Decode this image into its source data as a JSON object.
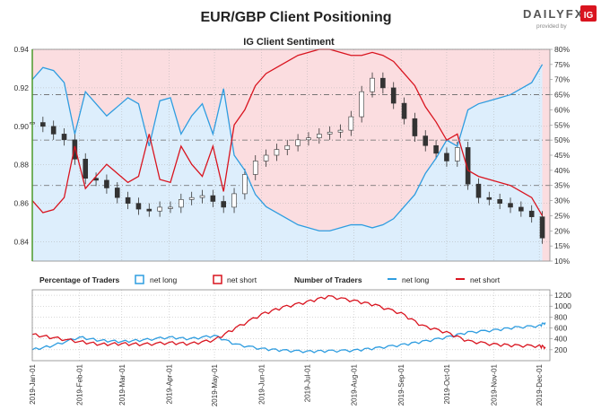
{
  "header": {
    "title": "EUR/GBP Client Positioning",
    "brand": "DAILYFX",
    "brand_tag": "provided by",
    "brand_mark": "IG"
  },
  "colors": {
    "net_long": "#2f9de0",
    "net_short": "#d9141f",
    "long_fill": "#ddeefc",
    "short_fill": "#fbdde0",
    "candle": "#333333",
    "grid": "#b0b0b0",
    "brand_red": "#d9141f"
  },
  "chart_data": [
    {
      "type": "line",
      "title": "IG Client Sentiment",
      "x": [
        "2019-01-01",
        "2019-02-01",
        "2019-03-01",
        "2019-04-01",
        "2019-05-01",
        "2019-06-01",
        "2019-07-01",
        "2019-08-01",
        "2019-09-01",
        "2019-10-01",
        "2019-11-01",
        "2019-12-01"
      ],
      "xtick_labels": [
        "2019-Jan-01",
        "2019-Feb-01",
        "2019-Mar-01",
        "2019-Apr-01",
        "2019-May-01",
        "2019-Jun-01",
        "2019-Jul-01",
        "2019-Aug-01",
        "2019-Sep-01",
        "2019-Oct-01",
        "2019-Nov-01",
        "2019-Dec-01"
      ],
      "ylim_price": [
        0.83,
        0.94
      ],
      "yticks_price": [
        "0.84",
        "0.86",
        "0.88",
        "0.90",
        "0.92",
        "0.94"
      ],
      "ylim_pct": [
        10,
        80
      ],
      "yticks_pct": [
        "10%",
        "15%",
        "20%",
        "25%",
        "30%",
        "35%",
        "40%",
        "45%",
        "50%",
        "55%",
        "60%",
        "65%",
        "70%",
        "75%",
        "80%"
      ],
      "reference_lines_pct": [
        35,
        50,
        65
      ],
      "price": {
        "x": [
          "2019-01-01",
          "2019-01-08",
          "2019-01-15",
          "2019-01-22",
          "2019-01-29",
          "2019-02-05",
          "2019-02-12",
          "2019-02-19",
          "2019-02-26",
          "2019-03-05",
          "2019-03-12",
          "2019-03-19",
          "2019-03-26",
          "2019-04-02",
          "2019-04-09",
          "2019-04-16",
          "2019-04-23",
          "2019-04-30",
          "2019-05-07",
          "2019-05-14",
          "2019-05-21",
          "2019-05-28",
          "2019-06-04",
          "2019-06-11",
          "2019-06-18",
          "2019-06-25",
          "2019-07-02",
          "2019-07-09",
          "2019-07-16",
          "2019-07-23",
          "2019-07-30",
          "2019-08-06",
          "2019-08-13",
          "2019-08-20",
          "2019-08-27",
          "2019-09-03",
          "2019-09-10",
          "2019-09-17",
          "2019-09-24",
          "2019-10-01",
          "2019-10-08",
          "2019-10-15",
          "2019-10-22",
          "2019-10-29",
          "2019-11-05",
          "2019-11-12",
          "2019-11-19",
          "2019-11-26",
          "2019-12-03"
        ],
        "y": [
          0.902,
          0.9,
          0.896,
          0.893,
          0.883,
          0.873,
          0.872,
          0.868,
          0.863,
          0.86,
          0.857,
          0.856,
          0.858,
          0.858,
          0.862,
          0.863,
          0.864,
          0.861,
          0.858,
          0.865,
          0.875,
          0.882,
          0.885,
          0.888,
          0.89,
          0.893,
          0.894,
          0.896,
          0.897,
          0.898,
          0.905,
          0.918,
          0.925,
          0.92,
          0.912,
          0.904,
          0.895,
          0.89,
          0.886,
          0.882,
          0.889,
          0.87,
          0.863,
          0.862,
          0.86,
          0.858,
          0.856,
          0.853,
          0.842
        ]
      },
      "series": [
        {
          "name": "net long",
          "x": [
            "2019-01-01",
            "2019-01-08",
            "2019-01-15",
            "2019-01-22",
            "2019-01-29",
            "2019-02-05",
            "2019-02-12",
            "2019-02-19",
            "2019-02-26",
            "2019-03-05",
            "2019-03-12",
            "2019-03-19",
            "2019-03-26",
            "2019-04-02",
            "2019-04-09",
            "2019-04-16",
            "2019-04-23",
            "2019-04-30",
            "2019-05-07",
            "2019-05-14",
            "2019-05-21",
            "2019-05-28",
            "2019-06-04",
            "2019-06-11",
            "2019-06-18",
            "2019-06-25",
            "2019-07-02",
            "2019-07-09",
            "2019-07-16",
            "2019-07-23",
            "2019-07-30",
            "2019-08-06",
            "2019-08-13",
            "2019-08-20",
            "2019-08-27",
            "2019-09-03",
            "2019-09-10",
            "2019-09-17",
            "2019-09-24",
            "2019-10-01",
            "2019-10-08",
            "2019-10-15",
            "2019-10-22",
            "2019-10-29",
            "2019-11-05",
            "2019-11-12",
            "2019-11-19",
            "2019-11-26",
            "2019-12-03"
          ],
          "values": [
            70,
            74,
            73,
            69,
            52,
            66,
            62,
            58,
            61,
            64,
            62,
            48,
            63,
            64,
            52,
            58,
            62,
            52,
            67,
            45,
            40,
            32,
            28,
            26,
            24,
            22,
            21,
            20,
            20,
            21,
            22,
            22,
            21,
            22,
            24,
            28,
            32,
            39,
            44,
            50,
            48,
            60,
            62,
            63,
            64,
            65,
            67,
            69,
            75
          ]
        },
        {
          "name": "net short",
          "x": [
            "2019-01-01",
            "2019-01-08",
            "2019-01-15",
            "2019-01-22",
            "2019-01-29",
            "2019-02-05",
            "2019-02-12",
            "2019-02-19",
            "2019-02-26",
            "2019-03-05",
            "2019-03-12",
            "2019-03-19",
            "2019-03-26",
            "2019-04-02",
            "2019-04-09",
            "2019-04-16",
            "2019-04-23",
            "2019-04-30",
            "2019-05-07",
            "2019-05-14",
            "2019-05-21",
            "2019-05-28",
            "2019-06-04",
            "2019-06-11",
            "2019-06-18",
            "2019-06-25",
            "2019-07-02",
            "2019-07-09",
            "2019-07-16",
            "2019-07-23",
            "2019-07-30",
            "2019-08-06",
            "2019-08-13",
            "2019-08-20",
            "2019-08-27",
            "2019-09-03",
            "2019-09-10",
            "2019-09-17",
            "2019-09-24",
            "2019-10-01",
            "2019-10-08",
            "2019-10-15",
            "2019-10-22",
            "2019-10-29",
            "2019-11-05",
            "2019-11-12",
            "2019-11-19",
            "2019-11-26",
            "2019-12-03"
          ],
          "values": [
            30,
            26,
            27,
            31,
            48,
            34,
            38,
            42,
            39,
            36,
            38,
            52,
            37,
            36,
            48,
            42,
            38,
            48,
            33,
            55,
            60,
            68,
            72,
            74,
            76,
            78,
            79,
            80,
            80,
            79,
            78,
            78,
            79,
            78,
            76,
            72,
            68,
            61,
            56,
            50,
            52,
            40,
            38,
            37,
            36,
            35,
            33,
            31,
            25
          ]
        }
      ]
    },
    {
      "type": "line",
      "legend_groups": [
        {
          "title": "Percentage of Traders",
          "entries": [
            "net long",
            "net short"
          ]
        },
        {
          "title": "Number of Traders",
          "entries": [
            "net long",
            "net short"
          ]
        }
      ],
      "ylim": [
        0,
        1300
      ],
      "yticks": [
        "200",
        "400",
        "600",
        "800",
        "1000",
        "1200"
      ],
      "series": [
        {
          "name": "net long",
          "x": [
            "2019-01-01",
            "2019-01-15",
            "2019-02-01",
            "2019-02-15",
            "2019-03-01",
            "2019-03-15",
            "2019-04-01",
            "2019-04-15",
            "2019-05-01",
            "2019-05-15",
            "2019-06-01",
            "2019-06-15",
            "2019-07-01",
            "2019-07-15",
            "2019-08-01",
            "2019-08-15",
            "2019-09-01",
            "2019-09-15",
            "2019-10-01",
            "2019-10-15",
            "2019-11-01",
            "2019-11-15",
            "2019-12-01",
            "2019-12-05"
          ],
          "values": [
            200,
            280,
            430,
            370,
            350,
            380,
            430,
            400,
            460,
            300,
            220,
            190,
            170,
            180,
            190,
            230,
            290,
            350,
            430,
            520,
            560,
            610,
            640,
            700
          ]
        },
        {
          "name": "net short",
          "x": [
            "2019-01-01",
            "2019-01-15",
            "2019-02-01",
            "2019-02-15",
            "2019-03-01",
            "2019-03-15",
            "2019-04-01",
            "2019-04-15",
            "2019-05-01",
            "2019-05-15",
            "2019-06-01",
            "2019-06-15",
            "2019-07-01",
            "2019-07-15",
            "2019-08-01",
            "2019-08-15",
            "2019-09-01",
            "2019-09-15",
            "2019-10-01",
            "2019-10-15",
            "2019-11-01",
            "2019-11-15",
            "2019-12-01",
            "2019-12-05"
          ],
          "values": [
            480,
            420,
            350,
            300,
            310,
            300,
            330,
            310,
            380,
            600,
            850,
            980,
            1080,
            1180,
            1100,
            1020,
            870,
            640,
            520,
            360,
            300,
            280,
            270,
            250
          ]
        }
      ]
    }
  ]
}
